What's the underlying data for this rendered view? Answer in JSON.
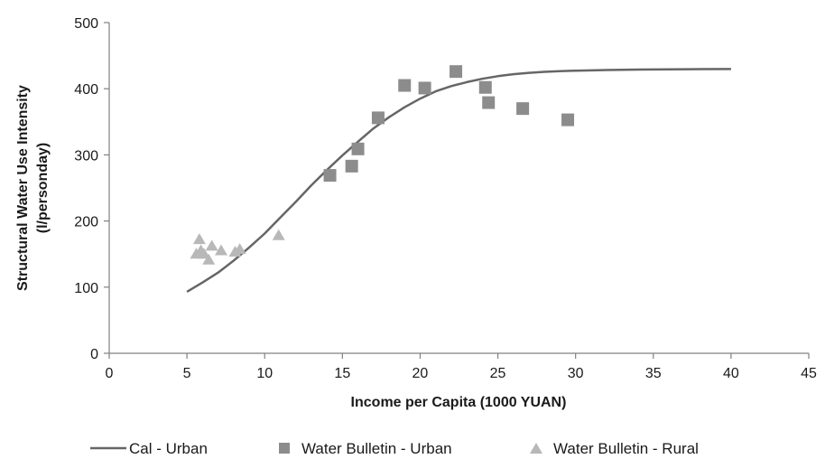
{
  "chart_data": {
    "type": "scatter",
    "xlabel": "Income per Capita (1000 YUAN)",
    "ylabel": "Structural Water Use Intensity",
    "ylabel_unit": "(l/personday)",
    "xlim": [
      0,
      45
    ],
    "ylim": [
      0,
      500
    ],
    "xticks": [
      0,
      5,
      10,
      15,
      20,
      25,
      30,
      35,
      40,
      45
    ],
    "yticks": [
      0,
      100,
      200,
      300,
      400,
      500
    ],
    "grid": false,
    "legend_position": "bottom",
    "series": [
      {
        "name": "Cal - Urban",
        "kind": "line",
        "color": "#666666",
        "x": [
          5,
          6,
          7,
          8,
          9,
          10,
          11,
          12,
          13,
          14,
          15,
          16,
          17,
          18,
          19,
          20,
          21,
          22,
          23,
          24,
          25,
          26,
          27,
          28,
          29,
          30,
          32,
          34,
          36,
          38,
          40
        ],
        "y": [
          93,
          107,
          122,
          140,
          160,
          181,
          205,
          229,
          254,
          277,
          299,
          320,
          340,
          357,
          372,
          385,
          396,
          404,
          410,
          415,
          419,
          422,
          424,
          425.5,
          426.5,
          427.3,
          428.3,
          428.9,
          429.3,
          429.6,
          429.8
        ]
      },
      {
        "name": "Water Bulletin - Urban",
        "kind": "square",
        "color": "#8c8c8c",
        "x": [
          14.2,
          15.6,
          16.0,
          17.3,
          19.0,
          20.3,
          22.3,
          24.2,
          24.4,
          26.6,
          29.5
        ],
        "y": [
          269,
          283,
          309,
          356,
          405,
          401,
          426,
          402,
          379,
          370,
          353
        ]
      },
      {
        "name": "Water Bulletin - Rural",
        "kind": "triangle",
        "color": "#b8b8b8",
        "x": [
          5.6,
          5.8,
          5.9,
          6.1,
          6.4,
          6.6,
          7.2,
          8.1,
          8.4,
          10.9
        ],
        "y": [
          150,
          172,
          155,
          150,
          141,
          162,
          155,
          153,
          157,
          178
        ]
      }
    ]
  }
}
